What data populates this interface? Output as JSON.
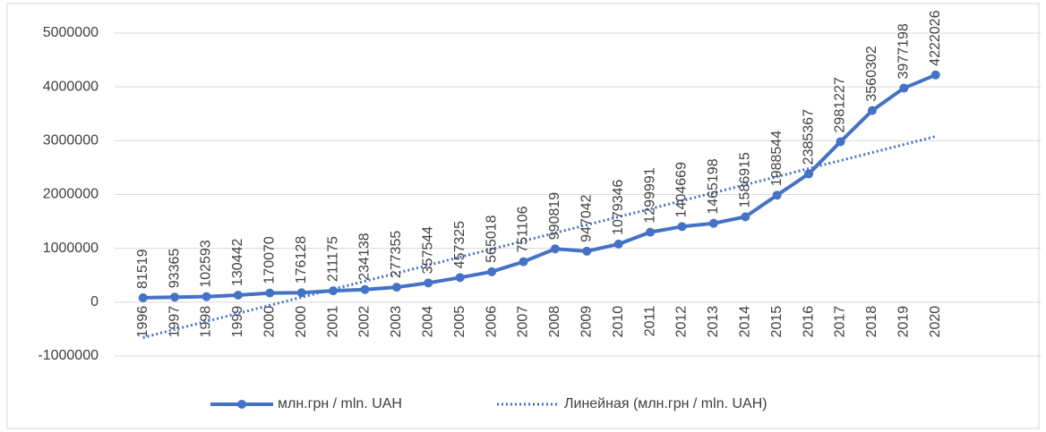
{
  "chart_data": {
    "type": "line",
    "categories": [
      "1996",
      "1997",
      "1998",
      "1999",
      "2000",
      "2000",
      "2001",
      "2002",
      "2003",
      "2004",
      "2005",
      "2006",
      "2007",
      "2008",
      "2009",
      "2010",
      "2011",
      "2012",
      "2013",
      "2014",
      "2015",
      "2016",
      "2017",
      "2018",
      "2019",
      "2020"
    ],
    "series": [
      {
        "name": "млн.грн / mln. UAH",
        "color": "#4472c4",
        "style": "solid",
        "markers": true,
        "data_labels": true,
        "values": [
          81519,
          93365,
          102593,
          130442,
          170070,
          176128,
          211175,
          234138,
          277355,
          357544,
          457325,
          565018,
          751106,
          990819,
          947042,
          1079346,
          1299991,
          1404669,
          1465198,
          1586915,
          1988544,
          2385367,
          2981227,
          3560302,
          3977198,
          4222026
        ]
      },
      {
        "name": "Линейная (млн.грн / mln. UAH)",
        "color": "#4472c4",
        "style": "dotted",
        "markers": false,
        "data_labels": false,
        "values": [
          -657000,
          -507000,
          -358000,
          -208000,
          -59000,
          91000,
          240000,
          390000,
          539000,
          688000,
          838000,
          987000,
          1137000,
          1286000,
          1436000,
          1585000,
          1734000,
          1884000,
          2033000,
          2183000,
          2332000,
          2482000,
          2631000,
          2780000,
          2930000,
          3079000
        ]
      }
    ],
    "ylim": [
      -1000000,
      5000000
    ],
    "yticks": [
      -1000000,
      0,
      1000000,
      2000000,
      3000000,
      4000000,
      5000000
    ],
    "grid": true,
    "legend": "bottom"
  }
}
